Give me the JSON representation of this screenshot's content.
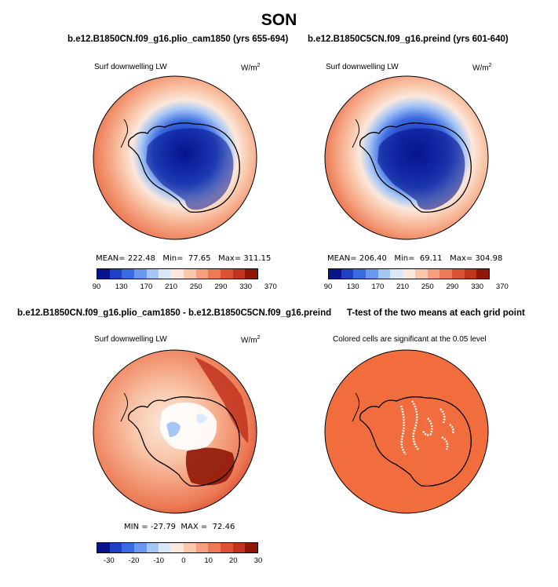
{
  "season": "SON",
  "panels": {
    "top_left": {
      "title": "b.e12.B1850CN.f09_g16.plio_cam1850 (yrs 655-694)",
      "variable": "Surf downwelling LW",
      "units_base": "W/m",
      "units_exp": "2",
      "mean_label": "MEAN=",
      "mean": "222.48",
      "min_label": "Min=",
      "min": "77.65",
      "max_label": "Max=",
      "max": "311.15"
    },
    "top_right": {
      "title": "b.e12.B1850C5CN.f09_g16.preind (yrs 601-640)",
      "variable": "Surf downwelling LW",
      "units_base": "W/m",
      "units_exp": "2",
      "mean_label": "MEAN=",
      "mean": "206.40",
      "min_label": "Min=",
      "min": "69.11",
      "max_label": "Max=",
      "max": "304.98"
    },
    "bottom_left": {
      "title": "b.e12.B1850CN.f09_g16.plio_cam1850 - b.e12.B1850C5CN.f09_g16.preind",
      "variable": "Surf downwelling LW",
      "units_base": "W/m",
      "units_exp": "2",
      "min_label": "MIN =",
      "min": "-27.79",
      "max_label": "MAX =",
      "max": "72.46"
    },
    "bottom_right": {
      "title": "T-test of the two means at each grid point",
      "subtitle": "Colored cells are significant at the 0.05 level"
    }
  },
  "colorbar_abs": {
    "labels": [
      "90",
      "130",
      "170",
      "210",
      "250",
      "290",
      "330",
      "370"
    ],
    "colors": [
      "#08148c",
      "#1f3fc4",
      "#3a6ae0",
      "#6a98ef",
      "#a6c6f6",
      "#d9e8fb",
      "#fbe8dc",
      "#f9c7ab",
      "#f4a07e",
      "#ec7a55",
      "#dc5233",
      "#c1331d",
      "#8f1707"
    ]
  },
  "colorbar_diff": {
    "labels": [
      "-30",
      "-20",
      "-10",
      "0",
      "10",
      "20",
      "30"
    ],
    "colors": [
      "#08148c",
      "#1f3fc4",
      "#3a6ae0",
      "#6a98ef",
      "#a6c6f6",
      "#d9e8fb",
      "#fbe8dc",
      "#f9c7ab",
      "#f4a07e",
      "#ec7a55",
      "#dc5233",
      "#c1331d",
      "#8f1707"
    ]
  },
  "significance_color": "#f26d3d"
}
